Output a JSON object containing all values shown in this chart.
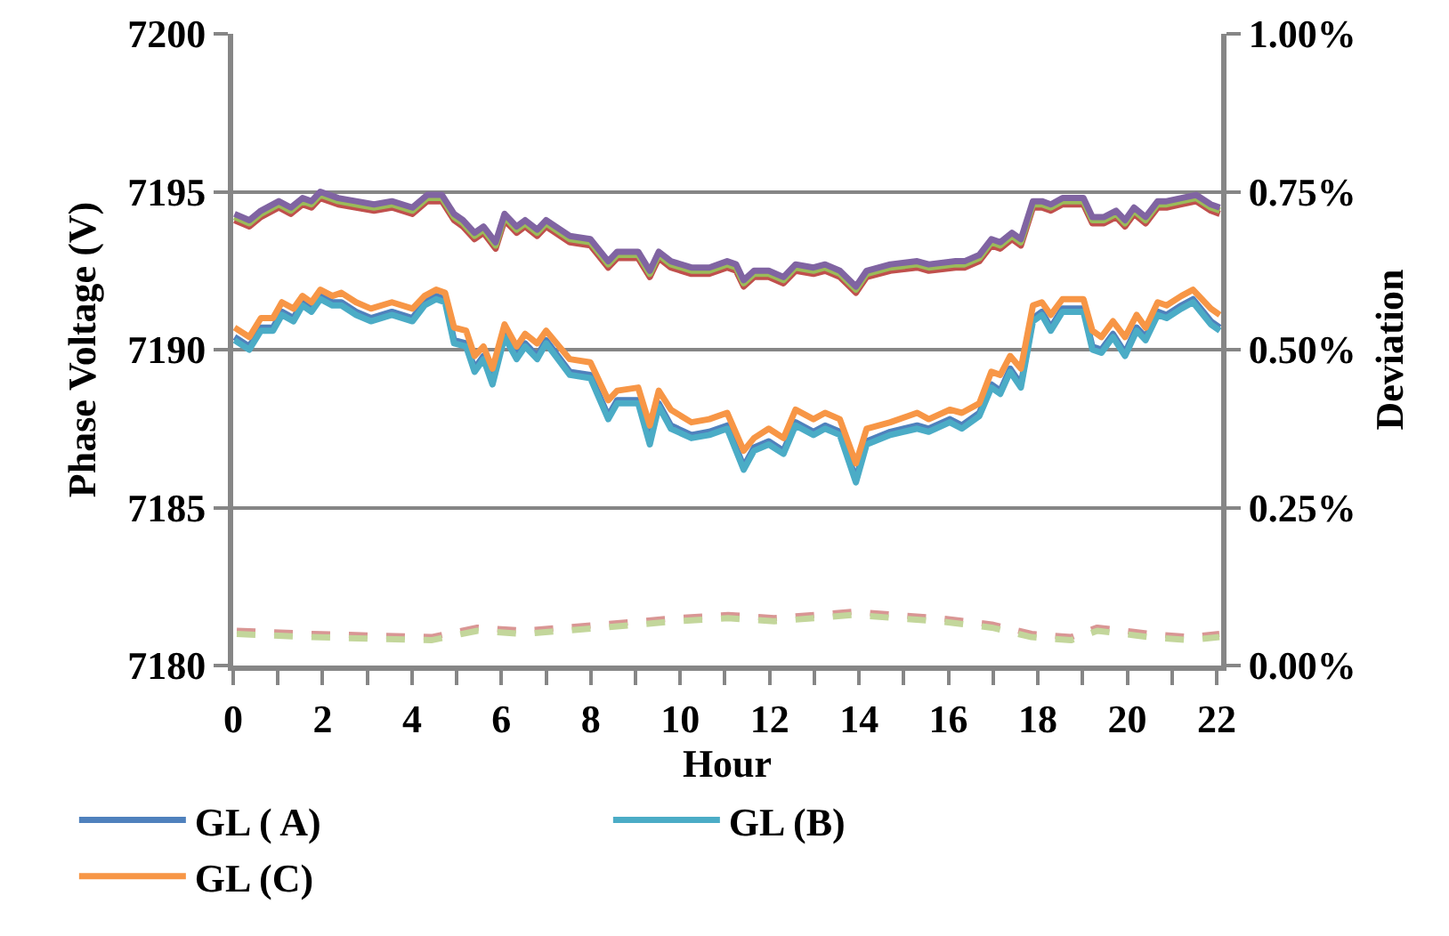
{
  "chart_data": {
    "type": "line",
    "xlabel": "Hour",
    "ylabel": "Phase Voltage (V)",
    "y2label": "Deviation",
    "xlim": [
      0,
      22.1
    ],
    "xticks": [
      0,
      {
        "value": 1,
        "label": null
      },
      2,
      {
        "value": 3,
        "label": null
      },
      4,
      {
        "value": 5,
        "label": null
      },
      6,
      {
        "value": 7,
        "label": null
      },
      8,
      {
        "value": 9,
        "label": null
      },
      10,
      {
        "value": 11,
        "label": null
      },
      12,
      {
        "value": 13,
        "label": null
      },
      14,
      {
        "value": 15,
        "label": null
      },
      16,
      {
        "value": 17,
        "label": null
      },
      18,
      {
        "value": 19,
        "label": null
      },
      20,
      {
        "value": 21,
        "label": null
      },
      22
    ],
    "ylim": [
      7180,
      7200
    ],
    "yticks": [
      7180,
      7185,
      7190,
      7195,
      7200
    ],
    "y2lim": [
      0,
      1
    ],
    "y2ticks": [
      {
        "value": 0,
        "label": "0.00%"
      },
      {
        "value": 0.25,
        "label": "0.25%"
      },
      {
        "value": 0.5,
        "label": "0.50%"
      },
      {
        "value": 0.75,
        "label": "0.75%"
      },
      {
        "value": 1,
        "label": "1.00%"
      }
    ],
    "grid": "y",
    "legend": "bottom",
    "marker": "none",
    "line_style": "solid",
    "series": [
      {
        "color": "#c0504d",
        "x": [
          0.03,
          0.36,
          0.62,
          1.02,
          1.29,
          1.55,
          1.75,
          1.95,
          2.35,
          2.75,
          3.15,
          3.55,
          4.01,
          4.34,
          4.67,
          4.94,
          5.14,
          5.4,
          5.6,
          5.87,
          6.07,
          6.34,
          6.53,
          6.8,
          7.0,
          7.53,
          7.99,
          8.39,
          8.59,
          9.06,
          9.32,
          9.52,
          9.79,
          10.25,
          10.65,
          11.05,
          11.25,
          11.42,
          11.65,
          11.98,
          12.31,
          12.58,
          12.98,
          13.24,
          13.57,
          13.93,
          14.17,
          14.7,
          15.3,
          15.56,
          16.16,
          16.36,
          16.69,
          16.96,
          17.16,
          17.42,
          17.62,
          17.89,
          18.09,
          18.29,
          18.55,
          19.02,
          19.22,
          19.48,
          19.75,
          19.95,
          20.15,
          20.41,
          20.68,
          20.88,
          21.21,
          21.54,
          21.87,
          22.07
        ],
        "values": [
          7194.1,
          7193.9,
          7194.2,
          7194.5,
          7194.3,
          7194.6,
          7194.5,
          7194.8,
          7194.6,
          7194.5,
          7194.4,
          7194.5,
          7194.3,
          7194.7,
          7194.7,
          7194.1,
          7193.9,
          7193.5,
          7193.7,
          7193.2,
          7194.1,
          7193.7,
          7193.9,
          7193.6,
          7193.9,
          7193.4,
          7193.3,
          7192.6,
          7192.9,
          7192.9,
          7192.3,
          7192.9,
          7192.6,
          7192.4,
          7192.4,
          7192.6,
          7192.5,
          7192.0,
          7192.3,
          7192.3,
          7192.1,
          7192.5,
          7192.4,
          7192.5,
          7192.3,
          7191.8,
          7192.3,
          7192.5,
          7192.6,
          7192.5,
          7192.6,
          7192.6,
          7192.8,
          7193.3,
          7193.2,
          7193.5,
          7193.3,
          7194.5,
          7194.5,
          7194.4,
          7194.6,
          7194.6,
          7194.0,
          7194.0,
          7194.2,
          7193.9,
          7194.3,
          7194.0,
          7194.5,
          7194.5,
          7194.6,
          7194.7,
          7194.4,
          7194.3
        ]
      },
      {
        "color": "#9bbb59",
        "x": [
          0.03,
          0.36,
          0.62,
          1.02,
          1.29,
          1.55,
          1.75,
          1.95,
          2.35,
          2.75,
          3.15,
          3.55,
          4.01,
          4.34,
          4.67,
          4.94,
          5.14,
          5.4,
          5.6,
          5.87,
          6.07,
          6.34,
          6.53,
          6.8,
          7.0,
          7.53,
          7.99,
          8.39,
          8.59,
          9.06,
          9.32,
          9.52,
          9.79,
          10.25,
          10.65,
          11.05,
          11.25,
          11.42,
          11.65,
          11.98,
          12.31,
          12.58,
          12.98,
          13.24,
          13.57,
          13.93,
          14.17,
          14.7,
          15.3,
          15.56,
          16.16,
          16.36,
          16.69,
          16.96,
          17.16,
          17.42,
          17.62,
          17.89,
          18.09,
          18.29,
          18.55,
          19.02,
          19.22,
          19.48,
          19.75,
          19.95,
          20.15,
          20.41,
          20.68,
          20.88,
          21.21,
          21.54,
          21.87,
          22.07
        ],
        "values": [
          7194.2,
          7194.0,
          7194.3,
          7194.6,
          7194.4,
          7194.7,
          7194.6,
          7194.9,
          7194.7,
          7194.6,
          7194.5,
          7194.6,
          7194.4,
          7194.8,
          7194.8,
          7194.2,
          7194.0,
          7193.6,
          7193.8,
          7193.3,
          7194.2,
          7193.8,
          7194.0,
          7193.7,
          7194.0,
          7193.5,
          7193.4,
          7192.7,
          7193.0,
          7193.0,
          7192.4,
          7193.0,
          7192.7,
          7192.5,
          7192.5,
          7192.7,
          7192.6,
          7192.1,
          7192.4,
          7192.4,
          7192.2,
          7192.6,
          7192.5,
          7192.6,
          7192.4,
          7191.9,
          7192.4,
          7192.6,
          7192.7,
          7192.6,
          7192.7,
          7192.7,
          7192.9,
          7193.4,
          7193.3,
          7193.6,
          7193.4,
          7194.6,
          7194.6,
          7194.5,
          7194.7,
          7194.7,
          7194.1,
          7194.1,
          7194.3,
          7194.0,
          7194.4,
          7194.1,
          7194.6,
          7194.6,
          7194.7,
          7194.8,
          7194.5,
          7194.4
        ]
      },
      {
        "color": "#8064a2",
        "x": [
          0.03,
          0.36,
          0.62,
          1.02,
          1.29,
          1.55,
          1.75,
          1.95,
          2.35,
          2.75,
          3.15,
          3.55,
          4.01,
          4.34,
          4.67,
          4.94,
          5.14,
          5.4,
          5.6,
          5.87,
          6.07,
          6.34,
          6.53,
          6.8,
          7.0,
          7.53,
          7.99,
          8.39,
          8.59,
          9.06,
          9.32,
          9.52,
          9.79,
          10.25,
          10.65,
          11.05,
          11.25,
          11.42,
          11.65,
          11.98,
          12.31,
          12.58,
          12.98,
          13.24,
          13.57,
          13.93,
          14.17,
          14.7,
          15.3,
          15.56,
          16.16,
          16.36,
          16.69,
          16.96,
          17.16,
          17.42,
          17.62,
          17.89,
          18.09,
          18.29,
          18.55,
          19.02,
          19.22,
          19.48,
          19.75,
          19.95,
          20.15,
          20.41,
          20.68,
          20.88,
          21.21,
          21.54,
          21.87,
          22.07
        ],
        "values": [
          7194.3,
          7194.1,
          7194.4,
          7194.7,
          7194.5,
          7194.8,
          7194.7,
          7195.0,
          7194.8,
          7194.7,
          7194.6,
          7194.7,
          7194.5,
          7194.9,
          7194.9,
          7194.3,
          7194.1,
          7193.7,
          7193.9,
          7193.4,
          7194.3,
          7193.9,
          7194.1,
          7193.8,
          7194.1,
          7193.6,
          7193.5,
          7192.8,
          7193.1,
          7193.1,
          7192.5,
          7193.1,
          7192.8,
          7192.6,
          7192.6,
          7192.8,
          7192.7,
          7192.2,
          7192.5,
          7192.5,
          7192.3,
          7192.7,
          7192.6,
          7192.7,
          7192.5,
          7192.0,
          7192.5,
          7192.7,
          7192.8,
          7192.7,
          7192.8,
          7192.8,
          7193.0,
          7193.5,
          7193.4,
          7193.7,
          7193.5,
          7194.7,
          7194.7,
          7194.6,
          7194.8,
          7194.8,
          7194.2,
          7194.2,
          7194.4,
          7194.1,
          7194.5,
          7194.2,
          7194.7,
          7194.7,
          7194.8,
          7194.9,
          7194.6,
          7194.5
        ]
      },
      {
        "name": "GL ( A)",
        "color": "#4f81bd",
        "x": [
          0.03,
          0.36,
          0.62,
          0.89,
          1.09,
          1.35,
          1.55,
          1.75,
          1.95,
          2.22,
          2.42,
          2.75,
          3.08,
          3.55,
          4.01,
          4.28,
          4.54,
          4.74,
          4.94,
          5.21,
          5.4,
          5.6,
          5.8,
          6.07,
          6.34,
          6.53,
          6.8,
          7.0,
          7.53,
          7.99,
          8.39,
          8.59,
          9.06,
          9.32,
          9.52,
          9.79,
          10.25,
          10.65,
          11.05,
          11.42,
          11.65,
          11.98,
          12.31,
          12.58,
          12.98,
          13.24,
          13.57,
          13.93,
          14.17,
          14.7,
          15.3,
          15.56,
          16.03,
          16.3,
          16.69,
          16.96,
          17.16,
          17.38,
          17.62,
          17.89,
          18.09,
          18.29,
          18.55,
          19.02,
          19.22,
          19.42,
          19.68,
          19.95,
          20.21,
          20.41,
          20.68,
          20.88,
          21.21,
          21.47,
          21.87,
          22.07
        ],
        "values": [
          7190.4,
          7190.1,
          7190.7,
          7190.7,
          7191.2,
          7191.0,
          7191.5,
          7191.3,
          7191.7,
          7191.5,
          7191.5,
          7191.2,
          7191.0,
          7191.2,
          7191.0,
          7191.5,
          7191.7,
          7191.6,
          7190.3,
          7190.2,
          7189.4,
          7189.8,
          7189.0,
          7190.5,
          7189.8,
          7190.2,
          7189.8,
          7190.3,
          7189.3,
          7189.2,
          7187.9,
          7188.4,
          7188.4,
          7187.1,
          7188.3,
          7187.6,
          7187.3,
          7187.4,
          7187.6,
          7186.3,
          7186.9,
          7187.1,
          7186.8,
          7187.7,
          7187.4,
          7187.6,
          7187.4,
          7185.9,
          7187.1,
          7187.4,
          7187.6,
          7187.5,
          7187.8,
          7187.6,
          7188.0,
          7188.9,
          7188.7,
          7189.4,
          7188.9,
          7191.0,
          7191.2,
          7190.7,
          7191.3,
          7191.3,
          7190.1,
          7190.0,
          7190.5,
          7189.9,
          7190.7,
          7190.4,
          7191.2,
          7191.1,
          7191.4,
          7191.6,
          7190.9,
          7190.7
        ]
      },
      {
        "name": "GL (B)",
        "color": "#4bacc6",
        "x": [
          0.03,
          0.36,
          0.62,
          0.89,
          1.09,
          1.35,
          1.55,
          1.75,
          1.95,
          2.22,
          2.42,
          2.75,
          3.08,
          3.55,
          4.01,
          4.28,
          4.54,
          4.74,
          4.94,
          5.21,
          5.4,
          5.6,
          5.8,
          6.07,
          6.34,
          6.53,
          6.8,
          7.0,
          7.53,
          7.99,
          8.39,
          8.59,
          9.06,
          9.32,
          9.52,
          9.79,
          10.25,
          10.65,
          11.05,
          11.42,
          11.65,
          11.98,
          12.31,
          12.58,
          12.98,
          13.24,
          13.57,
          13.93,
          14.17,
          14.7,
          15.3,
          15.56,
          16.03,
          16.3,
          16.69,
          16.96,
          17.16,
          17.38,
          17.62,
          17.89,
          18.09,
          18.29,
          18.55,
          19.02,
          19.22,
          19.42,
          19.68,
          19.95,
          20.21,
          20.41,
          20.68,
          20.88,
          21.21,
          21.47,
          21.87,
          22.07
        ],
        "values": [
          7190.3,
          7190.0,
          7190.6,
          7190.6,
          7191.1,
          7190.9,
          7191.4,
          7191.2,
          7191.6,
          7191.4,
          7191.4,
          7191.1,
          7190.9,
          7191.1,
          7190.9,
          7191.4,
          7191.6,
          7191.5,
          7190.2,
          7190.1,
          7189.3,
          7189.7,
          7188.9,
          7190.4,
          7189.7,
          7190.1,
          7189.7,
          7190.2,
          7189.2,
          7189.1,
          7187.8,
          7188.3,
          7188.3,
          7187.0,
          7188.2,
          7187.5,
          7187.2,
          7187.3,
          7187.5,
          7186.2,
          7186.8,
          7187.0,
          7186.7,
          7187.6,
          7187.3,
          7187.5,
          7187.3,
          7185.8,
          7187.0,
          7187.3,
          7187.5,
          7187.4,
          7187.7,
          7187.5,
          7187.9,
          7188.8,
          7188.6,
          7189.3,
          7188.8,
          7190.9,
          7191.1,
          7190.6,
          7191.2,
          7191.2,
          7190.0,
          7189.9,
          7190.4,
          7189.8,
          7190.6,
          7190.3,
          7191.1,
          7191.0,
          7191.3,
          7191.5,
          7190.8,
          7190.6
        ]
      },
      {
        "name": "GL (C)",
        "color": "#f79646",
        "x": [
          0.03,
          0.36,
          0.62,
          0.89,
          1.09,
          1.35,
          1.55,
          1.75,
          1.95,
          2.22,
          2.42,
          2.75,
          3.08,
          3.55,
          4.01,
          4.28,
          4.54,
          4.74,
          4.94,
          5.21,
          5.4,
          5.6,
          5.8,
          6.07,
          6.34,
          6.53,
          6.8,
          7.0,
          7.53,
          7.99,
          8.39,
          8.59,
          9.06,
          9.32,
          9.52,
          9.79,
          10.25,
          10.65,
          11.05,
          11.42,
          11.65,
          11.98,
          12.31,
          12.58,
          12.98,
          13.24,
          13.57,
          13.93,
          14.17,
          14.7,
          15.3,
          15.56,
          16.03,
          16.3,
          16.69,
          16.96,
          17.16,
          17.38,
          17.62,
          17.89,
          18.09,
          18.29,
          18.55,
          19.02,
          19.22,
          19.42,
          19.68,
          19.95,
          20.21,
          20.41,
          20.68,
          20.88,
          21.21,
          21.47,
          21.87,
          22.07
        ],
        "values": [
          7190.7,
          7190.4,
          7191.0,
          7191.0,
          7191.5,
          7191.3,
          7191.7,
          7191.5,
          7191.9,
          7191.7,
          7191.8,
          7191.5,
          7191.3,
          7191.5,
          7191.3,
          7191.7,
          7191.9,
          7191.8,
          7190.7,
          7190.6,
          7189.8,
          7190.1,
          7189.4,
          7190.8,
          7190.1,
          7190.5,
          7190.2,
          7190.6,
          7189.7,
          7189.6,
          7188.4,
          7188.7,
          7188.8,
          7187.6,
          7188.7,
          7188.1,
          7187.7,
          7187.8,
          7188.0,
          7186.8,
          7187.2,
          7187.5,
          7187.2,
          7188.1,
          7187.8,
          7188.0,
          7187.8,
          7186.4,
          7187.5,
          7187.7,
          7188.0,
          7187.8,
          7188.1,
          7188.0,
          7188.3,
          7189.3,
          7189.2,
          7189.8,
          7189.4,
          7191.4,
          7191.5,
          7191.1,
          7191.6,
          7191.6,
          7190.6,
          7190.4,
          7190.9,
          7190.4,
          7191.1,
          7190.7,
          7191.5,
          7191.4,
          7191.7,
          7191.9,
          7191.3,
          7191.1
        ]
      },
      {
        "color": "#d99694",
        "axis": "y2",
        "line_style": "dashed",
        "x": [
          0.08,
          1.77,
          4.43,
          5.46,
          6.5,
          8.27,
          9.9,
          11.07,
          12.1,
          13.87,
          15.79,
          16.97,
          17.86,
          18.74,
          19.33,
          20.5,
          21.4,
          22.06
        ],
        "values": [
          0.055,
          0.05,
          0.045,
          0.06,
          0.055,
          0.065,
          0.075,
          0.08,
          0.075,
          0.085,
          0.075,
          0.065,
          0.05,
          0.045,
          0.06,
          0.05,
          0.045,
          0.05
        ]
      },
      {
        "color": "#c3d69b",
        "axis": "y2",
        "line_style": "dashed",
        "x": [
          0.08,
          1.77,
          4.43,
          5.46,
          6.5,
          8.27,
          9.9,
          11.07,
          12.1,
          13.87,
          15.79,
          16.97,
          17.86,
          18.74,
          19.33,
          20.5,
          21.4,
          22.06
        ],
        "values": [
          0.05,
          0.045,
          0.04,
          0.055,
          0.05,
          0.06,
          0.07,
          0.075,
          0.07,
          0.08,
          0.07,
          0.06,
          0.045,
          0.04,
          0.055,
          0.045,
          0.04,
          0.045
        ]
      }
    ]
  }
}
